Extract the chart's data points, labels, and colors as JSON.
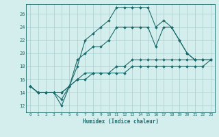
{
  "xlabel": "Humidex (Indice chaleur)",
  "bg_color": "#d4eeed",
  "grid_color": "#a8cccc",
  "line_color": "#1a6b6b",
  "x_ticks": [
    0,
    1,
    2,
    3,
    4,
    5,
    6,
    7,
    8,
    9,
    10,
    11,
    12,
    13,
    14,
    15,
    16,
    17,
    18,
    19,
    20,
    21,
    22,
    23
  ],
  "y_ticks": [
    12,
    14,
    16,
    18,
    20,
    22,
    24,
    26
  ],
  "ylim": [
    11.0,
    27.5
  ],
  "xlim": [
    -0.5,
    23.5
  ],
  "series": [
    [
      15,
      14,
      14,
      14,
      13,
      15,
      18,
      22,
      23,
      24,
      25,
      27,
      27,
      27,
      27,
      27,
      24,
      25,
      24,
      22,
      20,
      19,
      19,
      19
    ],
    [
      15,
      14,
      14,
      14,
      12,
      15,
      19,
      20,
      21,
      21,
      22,
      24,
      24,
      24,
      24,
      24,
      21,
      24,
      24,
      22,
      20,
      19,
      19,
      19
    ],
    [
      15,
      14,
      14,
      14,
      14,
      15,
      16,
      17,
      17,
      17,
      17,
      18,
      18,
      19,
      19,
      19,
      19,
      19,
      19,
      19,
      19,
      19,
      19,
      19
    ],
    [
      15,
      14,
      14,
      14,
      14,
      15,
      16,
      16,
      17,
      17,
      17,
      17,
      17,
      18,
      18,
      18,
      18,
      18,
      18,
      18,
      18,
      18,
      18,
      19
    ]
  ]
}
